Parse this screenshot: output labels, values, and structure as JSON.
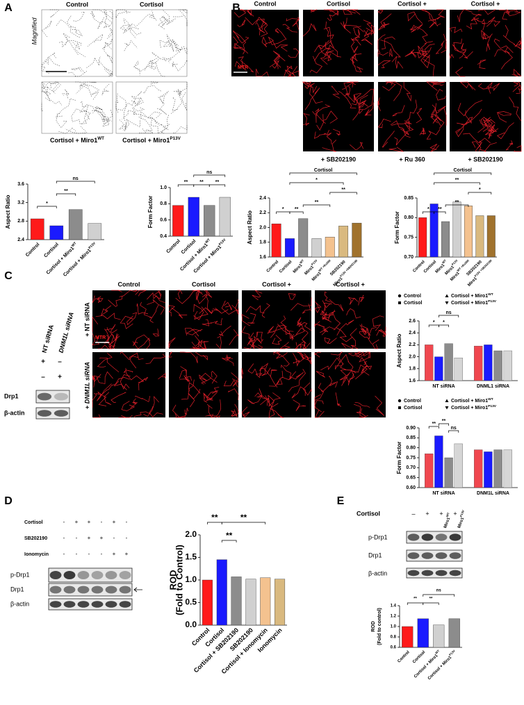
{
  "A": {
    "label": "A",
    "side_label": "Magnified",
    "images": [
      "Control",
      "Cortisol",
      {
        "text": "Cortisol + Miro1",
        "sup": "WT"
      },
      {
        "text": "Cortisol + Miro1",
        "sup": "P13V"
      }
    ],
    "aspect_ratio": {
      "type": "bar",
      "ylabel": "Aspect Ratio",
      "categories": [
        "Control",
        "Cortisol",
        {
          "text": "Cortisol + Miro1",
          "sup": "WT"
        },
        {
          "text": "Cortisol + Miro1",
          "sup": "P13V"
        }
      ],
      "values": [
        2.85,
        2.7,
        3.05,
        2.75
      ],
      "colors": [
        "#ff1a1a",
        "#1a1aff",
        "#8c8c8c",
        "#d0d0d0"
      ],
      "ylim": [
        2.4,
        3.6
      ],
      "yticks": [
        2.4,
        2.8,
        3.2,
        3.6
      ],
      "annotations": [
        "*",
        "**",
        "ns"
      ]
    },
    "form_factor": {
      "type": "bar",
      "ylabel": "Form Factor",
      "categories": [
        "Control",
        "Cortisol",
        {
          "text": "Cortisol + Miro1",
          "sup": "WT"
        },
        {
          "text": "Cortisol + Miro1",
          "sup": "P13V"
        }
      ],
      "values": [
        0.78,
        0.88,
        0.78,
        0.88
      ],
      "colors": [
        "#ff1a1a",
        "#1a1aff",
        "#8c8c8c",
        "#d0d0d0"
      ],
      "ylim": [
        0.4,
        1.0
      ],
      "yticks": [
        0.4,
        0.6,
        0.8,
        {
          "value": 1.0,
          "label": "1.0"
        }
      ],
      "annotations": [
        "**",
        "**",
        "**",
        "ns"
      ]
    }
  },
  "B": {
    "label": "B",
    "images_top": [
      "Control",
      "Cortisol",
      "Cortisol +",
      "Cortisol +"
    ],
    "images_bottom": [
      "+ SB202190",
      "+ Ru 360",
      "+ SB202190"
    ],
    "stain": "MTR",
    "aspect_ratio": {
      "type": "bar",
      "ylabel": "Aspect Ratio",
      "categories": [
        "Control",
        "Cortisol",
        {
          "text": "Miro1",
          "sup": "WT"
        },
        {
          "text": "Miro1",
          "sup": "P13V"
        },
        {
          "text": "Miro1",
          "sup": "WT +Ru360"
        },
        "SB202190",
        {
          "text": "Miro1",
          "sup": "P13V +SB202190"
        }
      ],
      "values": [
        2.05,
        1.85,
        2.12,
        1.85,
        1.87,
        2.02,
        2.06
      ],
      "colors": [
        "#ff1a1a",
        "#1a1aff",
        "#8c8c8c",
        "#d0d0d0",
        "#f4c28f",
        "#d9b97f",
        "#a0722d"
      ],
      "ylim": [
        1.6,
        2.4
      ],
      "yticks": [
        1.6,
        1.8,
        {
          "value": 2.0,
          "label": "2.0"
        },
        2.2,
        2.4
      ],
      "annotations": [
        "*",
        "**",
        "**",
        "**",
        "*",
        "Cortisol"
      ]
    },
    "form_factor": {
      "type": "bar",
      "ylabel": "Form Factor",
      "categories": [
        "Control",
        "Cortisol",
        {
          "text": "Miro1",
          "sup": "WT"
        },
        {
          "text": "Miro1",
          "sup": "P13V"
        },
        {
          "text": "Miro1",
          "sup": "WT +Ru360"
        },
        "SB202190",
        {
          "text": "Miro1",
          "sup": "P13V +SB202190"
        }
      ],
      "values": [
        0.8,
        0.835,
        0.79,
        0.84,
        0.83,
        0.805,
        0.805
      ],
      "colors": [
        "#ff1a1a",
        "#1a1aff",
        "#8c8c8c",
        "#d0d0d0",
        "#f4c28f",
        "#d9b97f",
        "#a0722d"
      ],
      "ylim": [
        0.7,
        0.85
      ],
      "yticks": [
        {
          "value": 0.7,
          "label": "0.70"
        },
        0.75,
        {
          "value": 0.8,
          "label": "0.80"
        },
        0.85
      ],
      "annotations": [
        "*",
        "**",
        "**",
        "*",
        "**",
        "Cortisol"
      ]
    }
  },
  "C": {
    "label": "C",
    "blot_rows": [
      {
        "label": "NT siRNA",
        "signs": [
          "+",
          "–"
        ]
      },
      {
        "label": "DNM1L siRNA",
        "signs": [
          "–",
          "+"
        ]
      }
    ],
    "blots": [
      "Drp1",
      "β-actin"
    ],
    "images_top": [
      "Control",
      "Cortisol",
      "Cortisol +",
      "Cortisol +"
    ],
    "rows": [
      "+ NT siRNA",
      "+ DNM1L siRNA"
    ],
    "stain": "MTR",
    "aspect_ratio": {
      "type": "grouped-bar",
      "ylabel": "Aspect Ratio",
      "groups": [
        "NT siRNA",
        "DNML1 siRNA"
      ],
      "series": [
        {
          "name": "Control",
          "color": "#f0474f",
          "values": [
            2.2,
            2.18
          ]
        },
        {
          "name": "Cortisol",
          "color": "#1a1aff",
          "values": [
            2.0,
            2.2
          ]
        },
        {
          "name": {
            "text": "Cortisol + Miro1",
            "sup": "WT"
          },
          "color": "#8c8c8c",
          "values": [
            2.22,
            2.1
          ]
        },
        {
          "name": {
            "text": "Cortisol + Miro1",
            "sup": "P13V"
          },
          "color": "#d6d6d6",
          "values": [
            1.98,
            2.1
          ]
        }
      ],
      "ylim": [
        1.6,
        2.6
      ],
      "yticks": [
        1.6,
        1.8,
        {
          "value": 2.0,
          "label": "2.0"
        },
        2.2,
        2.4,
        2.6
      ],
      "annotations": [
        "*",
        "*",
        "ns"
      ]
    },
    "form_factor": {
      "type": "grouped-bar",
      "ylabel": "Form Factor",
      "groups": [
        "NT siRNA",
        "DNM1L siRNA"
      ],
      "series": [
        {
          "name": "Control",
          "color": "#f0474f",
          "values": [
            0.77,
            0.79
          ]
        },
        {
          "name": "Cortisol",
          "color": "#1a1aff",
          "values": [
            0.86,
            0.78
          ]
        },
        {
          "name": {
            "text": "Cortisol + Miro1",
            "sup": "WT"
          },
          "color": "#8c8c8c",
          "values": [
            0.75,
            0.79
          ]
        },
        {
          "name": {
            "text": "Cortisol + Miro1",
            "sup": "P13V"
          },
          "color": "#d6d6d6",
          "values": [
            0.82,
            0.79
          ]
        }
      ],
      "ylim": [
        0.6,
        0.9
      ],
      "yticks": [
        {
          "value": 0.6,
          "label": "0.60"
        },
        0.65,
        {
          "value": 0.7,
          "label": "0.70"
        },
        0.75,
        {
          "value": 0.8,
          "label": "0.80"
        },
        0.85,
        {
          "value": 0.9,
          "label": "0.90"
        }
      ],
      "annotations": [
        "**",
        "**",
        "ns"
      ]
    }
  },
  "D": {
    "label": "D",
    "rows": [
      {
        "label": "Cortisol",
        "signs": [
          "-",
          "+",
          "+",
          "-",
          "+",
          "-"
        ]
      },
      {
        "label": "SB202190",
        "signs": [
          "-",
          "-",
          "+",
          "+",
          "-",
          "-"
        ]
      },
      {
        "label": "Ionomycin",
        "signs": [
          "-",
          "-",
          "-",
          "-",
          "+",
          "+"
        ]
      }
    ],
    "blots": [
      "p-Drp1",
      "Drp1",
      "β-actin"
    ],
    "rod": {
      "type": "bar",
      "ylabel": [
        "ROD",
        "(Fold to Control)"
      ],
      "categories": [
        "Control",
        "Cortisol",
        "Cortisol + SB202190",
        "SB202190",
        "Cortisol + Ionomycin",
        "Ionomycin"
      ],
      "values": [
        1.0,
        1.45,
        1.07,
        1.02,
        1.05,
        1.02
      ],
      "colors": [
        "#ff1a1a",
        "#1a1aff",
        "#8c8c8c",
        "#d0d0d0",
        "#f4c28f",
        "#d9b97f"
      ],
      "ylim": [
        0,
        2
      ],
      "yticks": [
        {
          "value": 0,
          "label": "0.0"
        },
        0.5,
        {
          "value": 1,
          "label": "1.0"
        },
        1.5,
        {
          "value": 2,
          "label": "2.0"
        }
      ],
      "annotations": [
        "**",
        "**",
        "**"
      ]
    }
  },
  "E": {
    "label": "E",
    "row": {
      "label": "Cortisol",
      "signs": [
        "–",
        "+",
        "+",
        "+"
      ]
    },
    "lanes": [
      {
        "text": "Miro1",
        "sup": "WT"
      },
      {
        "text": "Miro1",
        "sup": "P13V"
      }
    ],
    "blots": [
      "p-Drp1",
      "Drp1",
      "β-actin"
    ],
    "rod": {
      "type": "bar",
      "ylabel": [
        "ROD",
        "(Fold to control)"
      ],
      "categories": [
        "Control",
        "Cortisol",
        {
          "text": "Cortisol + Miro1",
          "sup": "WT"
        },
        {
          "text": "Cortisol + Miro1",
          "sup": "P13V"
        }
      ],
      "values": [
        1.0,
        1.15,
        1.03,
        1.15
      ],
      "colors": [
        "#ff1a1a",
        "#1a1aff",
        "#d0d0d0",
        "#8c8c8c"
      ],
      "ylim": [
        0.6,
        1.4
      ],
      "yticks": [
        0.6,
        0.8,
        {
          "value": 1.0,
          "label": "1.0"
        },
        1.2,
        1.4
      ],
      "annotations": [
        "**",
        "**",
        "ns"
      ]
    }
  }
}
